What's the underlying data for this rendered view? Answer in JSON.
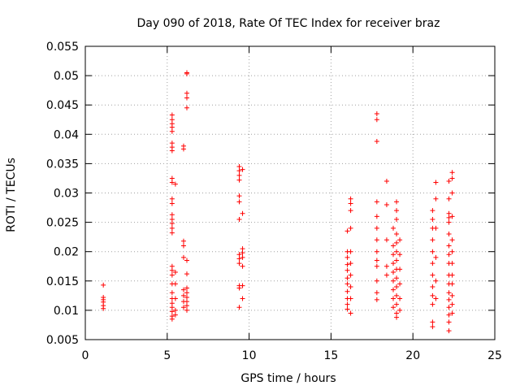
{
  "chart_data": {
    "type": "scatter",
    "title": "Day 090 of 2018, Rate Of TEC Index for receiver braz",
    "xlabel": "GPS time / hours",
    "ylabel": "ROTI / TECUs",
    "xlim": [
      0,
      25
    ],
    "ylim": [
      0.005,
      0.055
    ],
    "x_ticks": [
      0,
      5,
      10,
      15,
      20,
      25
    ],
    "x_tick_labels": [
      "0",
      "5",
      "10",
      "15",
      "20",
      "25"
    ],
    "y_ticks": [
      0.005,
      0.01,
      0.015,
      0.02,
      0.025,
      0.03,
      0.035,
      0.04,
      0.045,
      0.05,
      0.055
    ],
    "y_tick_labels": [
      "0.005",
      "0.01",
      "0.015",
      "0.02",
      "0.025",
      "0.03",
      "0.035",
      "0.04",
      "0.045",
      "0.05",
      "0.055"
    ],
    "grid": true,
    "marker": "plus",
    "marker_color": "#ff0000",
    "series": [
      {
        "values": [
          [
            1.1,
            0.0143
          ],
          [
            1.1,
            0.0122
          ],
          [
            1.1,
            0.0118
          ],
          [
            1.1,
            0.0114
          ],
          [
            1.1,
            0.0108
          ],
          [
            1.1,
            0.0103
          ],
          [
            5.3,
            0.0433
          ],
          [
            5.3,
            0.0425
          ],
          [
            5.3,
            0.0418
          ],
          [
            5.3,
            0.0412
          ],
          [
            5.3,
            0.0405
          ],
          [
            5.3,
            0.0385
          ],
          [
            5.3,
            0.0378
          ],
          [
            5.3,
            0.0372
          ],
          [
            5.3,
            0.0325
          ],
          [
            5.3,
            0.0318
          ],
          [
            5.3,
            0.029
          ],
          [
            5.3,
            0.0282
          ],
          [
            5.3,
            0.0263
          ],
          [
            5.3,
            0.0255
          ],
          [
            5.3,
            0.0248
          ],
          [
            5.3,
            0.024
          ],
          [
            5.3,
            0.0232
          ],
          [
            5.3,
            0.0175
          ],
          [
            5.3,
            0.0168
          ],
          [
            5.3,
            0.016
          ],
          [
            5.3,
            0.0145
          ],
          [
            5.3,
            0.013
          ],
          [
            5.3,
            0.012
          ],
          [
            5.3,
            0.0112
          ],
          [
            5.3,
            0.0105
          ],
          [
            5.3,
            0.0098
          ],
          [
            5.3,
            0.009
          ],
          [
            5.3,
            0.0085
          ],
          [
            5.5,
            0.0315
          ],
          [
            5.5,
            0.0165
          ],
          [
            5.5,
            0.0145
          ],
          [
            5.5,
            0.012
          ],
          [
            5.5,
            0.01
          ],
          [
            5.5,
            0.0092
          ],
          [
            6.0,
            0.038
          ],
          [
            6.0,
            0.0375
          ],
          [
            6.0,
            0.0218
          ],
          [
            6.0,
            0.021
          ],
          [
            6.0,
            0.019
          ],
          [
            6.0,
            0.0135
          ],
          [
            6.0,
            0.0125
          ],
          [
            6.0,
            0.0115
          ],
          [
            6.0,
            0.0105
          ],
          [
            6.2,
            0.0505
          ],
          [
            6.2,
            0.0503
          ],
          [
            6.2,
            0.047
          ],
          [
            6.2,
            0.0462
          ],
          [
            6.2,
            0.0445
          ],
          [
            6.2,
            0.0185
          ],
          [
            6.2,
            0.0162
          ],
          [
            6.2,
            0.0138
          ],
          [
            6.2,
            0.013
          ],
          [
            6.2,
            0.0122
          ],
          [
            6.2,
            0.0115
          ],
          [
            6.2,
            0.0108
          ],
          [
            6.2,
            0.01
          ],
          [
            9.4,
            0.0345
          ],
          [
            9.4,
            0.0338
          ],
          [
            9.4,
            0.033
          ],
          [
            9.4,
            0.0322
          ],
          [
            9.4,
            0.0295
          ],
          [
            9.4,
            0.0285
          ],
          [
            9.4,
            0.0255
          ],
          [
            9.4,
            0.0195
          ],
          [
            9.4,
            0.0188
          ],
          [
            9.4,
            0.018
          ],
          [
            9.4,
            0.0142
          ],
          [
            9.4,
            0.0138
          ],
          [
            9.4,
            0.0105
          ],
          [
            9.6,
            0.034
          ],
          [
            9.6,
            0.0265
          ],
          [
            9.6,
            0.0205
          ],
          [
            9.6,
            0.0198
          ],
          [
            9.6,
            0.019
          ],
          [
            9.6,
            0.0175
          ],
          [
            9.6,
            0.0142
          ],
          [
            9.6,
            0.012
          ],
          [
            16.0,
            0.0235
          ],
          [
            16.0,
            0.02
          ],
          [
            16.0,
            0.019
          ],
          [
            16.0,
            0.0178
          ],
          [
            16.0,
            0.0168
          ],
          [
            16.0,
            0.0155
          ],
          [
            16.0,
            0.0145
          ],
          [
            16.0,
            0.0132
          ],
          [
            16.0,
            0.012
          ],
          [
            16.0,
            0.011
          ],
          [
            16.0,
            0.0102
          ],
          [
            16.2,
            0.029
          ],
          [
            16.2,
            0.0282
          ],
          [
            16.2,
            0.027
          ],
          [
            16.2,
            0.024
          ],
          [
            16.2,
            0.02
          ],
          [
            16.2,
            0.018
          ],
          [
            16.2,
            0.016
          ],
          [
            16.2,
            0.014
          ],
          [
            16.2,
            0.012
          ],
          [
            16.2,
            0.0095
          ],
          [
            17.8,
            0.0435
          ],
          [
            17.8,
            0.0425
          ],
          [
            17.8,
            0.0388
          ],
          [
            17.8,
            0.0285
          ],
          [
            17.8,
            0.026
          ],
          [
            17.8,
            0.024
          ],
          [
            17.8,
            0.022
          ],
          [
            17.8,
            0.02
          ],
          [
            17.8,
            0.0185
          ],
          [
            17.8,
            0.0175
          ],
          [
            17.8,
            0.015
          ],
          [
            17.8,
            0.013
          ],
          [
            17.8,
            0.0118
          ],
          [
            18.4,
            0.032
          ],
          [
            18.4,
            0.028
          ],
          [
            18.4,
            0.022
          ],
          [
            18.4,
            0.0175
          ],
          [
            18.4,
            0.016
          ],
          [
            18.8,
            0.024
          ],
          [
            18.8,
            0.021
          ],
          [
            18.8,
            0.0195
          ],
          [
            18.8,
            0.018
          ],
          [
            18.8,
            0.0165
          ],
          [
            18.8,
            0.015
          ],
          [
            18.8,
            0.0135
          ],
          [
            18.8,
            0.012
          ],
          [
            18.8,
            0.0105
          ],
          [
            19.0,
            0.0285
          ],
          [
            19.0,
            0.027
          ],
          [
            19.0,
            0.0255
          ],
          [
            19.0,
            0.023
          ],
          [
            19.0,
            0.0215
          ],
          [
            19.0,
            0.02
          ],
          [
            19.0,
            0.0185
          ],
          [
            19.0,
            0.017
          ],
          [
            19.0,
            0.0155
          ],
          [
            19.0,
            0.014
          ],
          [
            19.0,
            0.0125
          ],
          [
            19.0,
            0.011
          ],
          [
            19.0,
            0.0095
          ],
          [
            19.0,
            0.0088
          ],
          [
            19.2,
            0.022
          ],
          [
            19.2,
            0.0195
          ],
          [
            19.2,
            0.017
          ],
          [
            19.2,
            0.0145
          ],
          [
            19.2,
            0.012
          ],
          [
            19.2,
            0.01
          ],
          [
            21.2,
            0.027
          ],
          [
            21.2,
            0.0255
          ],
          [
            21.2,
            0.024
          ],
          [
            21.2,
            0.022
          ],
          [
            21.2,
            0.02
          ],
          [
            21.2,
            0.018
          ],
          [
            21.2,
            0.016
          ],
          [
            21.2,
            0.014
          ],
          [
            21.2,
            0.0125
          ],
          [
            21.2,
            0.011
          ],
          [
            21.2,
            0.008
          ],
          [
            21.2,
            0.0072
          ],
          [
            21.4,
            0.0318
          ],
          [
            21.4,
            0.029
          ],
          [
            21.4,
            0.024
          ],
          [
            21.4,
            0.019
          ],
          [
            21.4,
            0.015
          ],
          [
            21.4,
            0.012
          ],
          [
            22.2,
            0.032
          ],
          [
            22.2,
            0.029
          ],
          [
            22.2,
            0.0265
          ],
          [
            22.2,
            0.0258
          ],
          [
            22.2,
            0.025
          ],
          [
            22.2,
            0.023
          ],
          [
            22.2,
            0.021
          ],
          [
            22.2,
            0.0195
          ],
          [
            22.2,
            0.018
          ],
          [
            22.2,
            0.016
          ],
          [
            22.2,
            0.0145
          ],
          [
            22.2,
            0.013
          ],
          [
            22.2,
            0.0118
          ],
          [
            22.2,
            0.0105
          ],
          [
            22.2,
            0.0092
          ],
          [
            22.2,
            0.008
          ],
          [
            22.2,
            0.0065
          ],
          [
            22.4,
            0.0335
          ],
          [
            22.4,
            0.0325
          ],
          [
            22.4,
            0.03
          ],
          [
            22.4,
            0.026
          ],
          [
            22.4,
            0.022
          ],
          [
            22.4,
            0.02
          ],
          [
            22.4,
            0.018
          ],
          [
            22.4,
            0.016
          ],
          [
            22.4,
            0.0145
          ],
          [
            22.4,
            0.0125
          ],
          [
            22.4,
            0.011
          ],
          [
            22.4,
            0.0095
          ]
        ]
      }
    ]
  }
}
